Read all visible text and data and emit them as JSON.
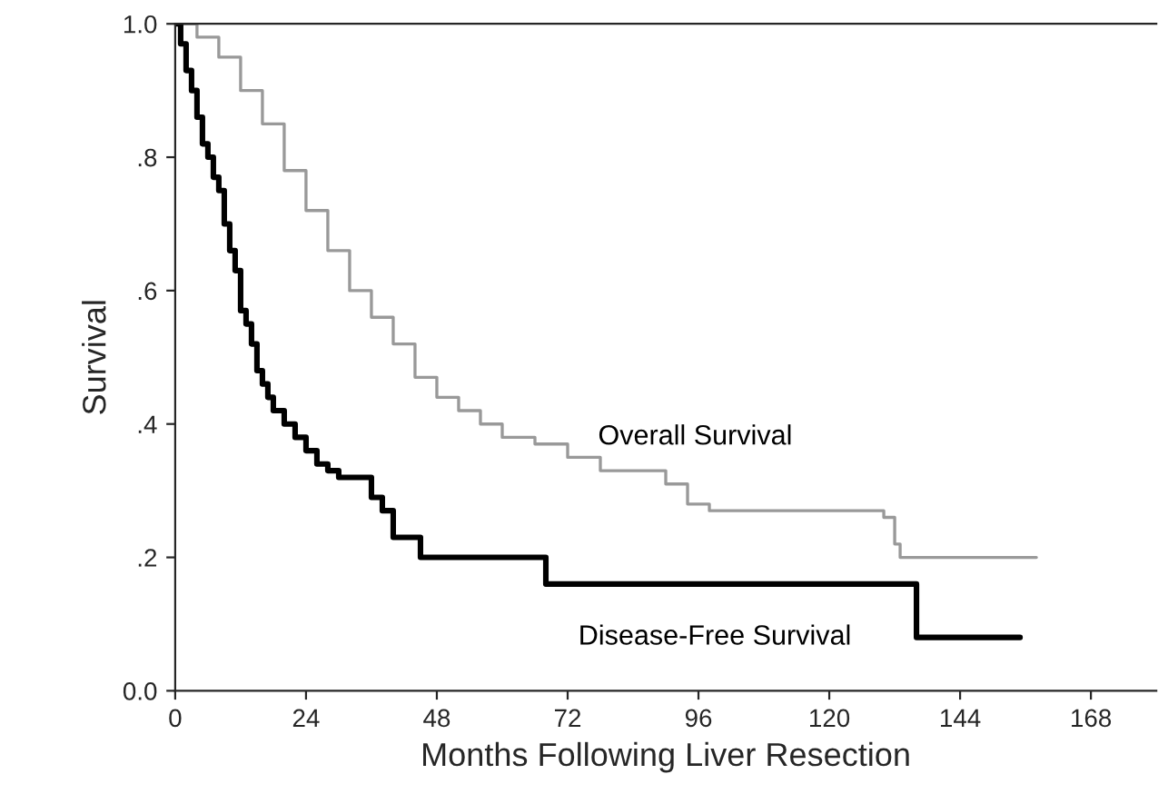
{
  "chart_data": {
    "type": "step",
    "xlabel": "Months Following Liver Resection",
    "ylabel": "Survival",
    "xlim": [
      0,
      180
    ],
    "ylim": [
      0,
      1.0
    ],
    "xticks": [
      0,
      24,
      48,
      72,
      96,
      120,
      144,
      168
    ],
    "yticks": [
      {
        "value": 0,
        "label": "0.0"
      },
      {
        "value": 0.2,
        "label": ".2"
      },
      {
        "value": 0.4,
        "label": ".4"
      },
      {
        "value": 0.6,
        "label": ".6"
      },
      {
        "value": 0.8,
        "label": ".8"
      },
      {
        "value": 1.0,
        "label": "1.0"
      }
    ],
    "grid": false,
    "legend": false,
    "line_style": "solid",
    "marker": "none",
    "series": [
      {
        "name": "Overall Survival",
        "color": "#999999",
        "x": [
          0,
          4,
          8,
          12,
          16,
          20,
          24,
          28,
          32,
          36,
          40,
          44,
          48,
          52,
          56,
          60,
          66,
          72,
          78,
          84,
          90,
          94,
          98,
          110,
          120,
          130,
          132,
          133,
          158
        ],
        "values": [
          1.0,
          0.98,
          0.95,
          0.9,
          0.85,
          0.78,
          0.72,
          0.66,
          0.6,
          0.56,
          0.52,
          0.47,
          0.44,
          0.42,
          0.4,
          0.38,
          0.37,
          0.35,
          0.33,
          0.33,
          0.31,
          0.28,
          0.27,
          0.27,
          0.27,
          0.26,
          0.22,
          0.2,
          0.2
        ]
      },
      {
        "name": "Disease-Free Survival",
        "color": "#000000",
        "x": [
          0,
          1,
          2,
          3,
          4,
          5,
          6,
          7,
          8,
          9,
          10,
          11,
          12,
          13,
          14,
          15,
          16,
          17,
          18,
          20,
          22,
          24,
          26,
          28,
          30,
          34,
          36,
          38,
          40,
          45,
          68,
          136,
          155
        ],
        "values": [
          1.0,
          0.97,
          0.93,
          0.9,
          0.86,
          0.82,
          0.8,
          0.77,
          0.75,
          0.7,
          0.66,
          0.63,
          0.57,
          0.55,
          0.52,
          0.48,
          0.46,
          0.44,
          0.42,
          0.4,
          0.38,
          0.36,
          0.34,
          0.33,
          0.32,
          0.32,
          0.29,
          0.27,
          0.23,
          0.2,
          0.16,
          0.08,
          0.08
        ]
      }
    ]
  }
}
